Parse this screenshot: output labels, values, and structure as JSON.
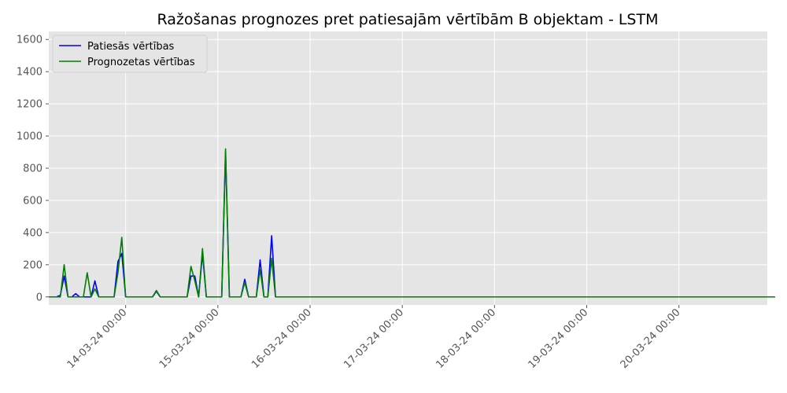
{
  "chart_data": {
    "type": "line",
    "title": "Ražošanas prognozes pret patiesajām vērtībām B objektam - LSTM",
    "xlabel": "",
    "ylabel": "",
    "ylim": [
      -50,
      1650
    ],
    "x_range": [
      "13-03-24 04:00",
      "20-03-24 23:00"
    ],
    "x_start": "13-03-24 04:00",
    "x_step_hours": 1,
    "x_ticks": [
      "14-03-24 00:00",
      "15-03-24 00:00",
      "16-03-24 00:00",
      "17-03-24 00:00",
      "18-03-24 00:00",
      "19-03-24 00:00",
      "20-03-24 00:00"
    ],
    "y_ticks": [
      0,
      200,
      400,
      600,
      800,
      1000,
      1200,
      1400,
      1600
    ],
    "grid": true,
    "legend_position": "top-left",
    "colors": {
      "background": "#e5e5e5",
      "grid": "#ffffff",
      "true": "#0000ff",
      "pred": "#008000"
    },
    "series": [
      {
        "name": "Patiesās vērtības",
        "color": "#0000ff",
        "values": [
          0,
          0,
          0,
          10,
          130,
          0,
          0,
          20,
          0,
          0,
          0,
          0,
          100,
          0,
          0,
          0,
          0,
          0,
          220,
          270,
          0,
          0,
          0,
          0,
          0,
          0,
          0,
          0,
          35,
          0,
          0,
          0,
          0,
          0,
          0,
          0,
          0,
          130,
          130,
          0,
          270,
          0,
          0,
          0,
          0,
          0,
          900,
          0,
          0,
          0,
          0,
          110,
          0,
          0,
          0,
          230,
          0,
          0,
          380,
          0,
          0,
          0,
          0,
          0,
          0,
          0,
          0,
          0,
          0,
          0,
          0,
          0,
          0,
          0,
          0,
          0,
          0,
          0,
          0,
          0,
          0,
          0,
          0,
          0,
          0,
          0,
          0,
          0,
          0,
          0,
          0,
          0,
          0,
          0,
          0,
          0,
          0,
          0,
          0,
          0,
          0,
          0,
          0,
          0,
          0,
          0,
          0,
          0,
          0,
          0,
          0,
          0,
          0,
          0,
          0,
          0,
          0,
          0,
          0,
          0,
          0,
          0,
          0,
          0,
          0,
          0,
          0,
          0,
          0,
          0,
          0,
          0,
          0,
          0,
          0,
          0,
          0,
          0,
          0,
          0,
          0,
          0,
          0,
          0,
          0,
          0,
          0,
          0,
          0,
          0,
          0,
          0,
          0,
          0,
          0,
          0,
          0,
          0,
          0,
          0,
          0,
          0,
          0,
          0,
          0,
          0,
          0,
          0,
          0,
          0,
          0,
          0,
          0,
          0,
          0,
          0,
          0,
          0,
          0,
          0,
          0,
          0,
          0,
          0,
          0,
          0,
          0,
          0,
          0,
          0
        ]
      },
      {
        "name": "Prognozetas vērtības",
        "color": "#008000",
        "values": [
          0,
          0,
          0,
          0,
          200,
          0,
          0,
          0,
          0,
          0,
          150,
          0,
          50,
          0,
          0,
          0,
          0,
          0,
          150,
          370,
          0,
          0,
          0,
          0,
          0,
          0,
          0,
          0,
          40,
          0,
          0,
          0,
          0,
          0,
          0,
          0,
          0,
          190,
          100,
          0,
          300,
          0,
          0,
          0,
          0,
          0,
          920,
          0,
          0,
          0,
          0,
          90,
          0,
          0,
          0,
          170,
          0,
          0,
          240,
          0,
          0,
          0,
          0,
          0,
          0,
          0,
          0,
          0,
          0,
          0,
          0,
          0,
          0,
          0,
          0,
          0,
          0,
          0,
          0,
          0,
          0,
          0,
          0,
          0,
          0,
          0,
          0,
          0,
          0,
          0,
          0,
          0,
          0,
          0,
          0,
          0,
          0,
          0,
          0,
          0,
          0,
          0,
          0,
          0,
          0,
          0,
          0,
          0,
          0,
          0,
          0,
          0,
          0,
          0,
          0,
          0,
          0,
          0,
          0,
          0,
          0,
          0,
          0,
          0,
          0,
          0,
          0,
          0,
          0,
          0,
          0,
          0,
          0,
          0,
          0,
          0,
          0,
          0,
          0,
          0,
          0,
          0,
          0,
          0,
          0,
          0,
          0,
          0,
          0,
          0,
          0,
          0,
          0,
          0,
          0,
          0,
          0,
          0,
          0,
          0,
          0,
          0,
          0,
          0,
          0,
          0,
          0,
          0,
          0,
          0,
          0,
          0,
          0,
          0,
          0,
          0,
          0,
          0,
          0,
          0,
          0,
          0,
          0,
          0,
          0,
          0,
          0,
          0,
          0,
          0
        ]
      }
    ]
  }
}
